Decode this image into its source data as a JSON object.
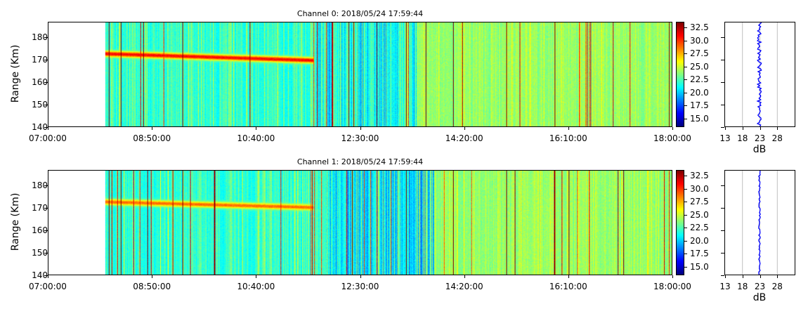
{
  "chart_data": [
    {
      "type": "heatmap",
      "title": "Channel 0: 2018/05/24 17:59:44",
      "ylabel": "Range (Km)",
      "xlim": [
        "07:00:00",
        "18:00:00"
      ],
      "ylim": [
        140,
        187
      ],
      "x_ticks": [
        "07:00:00",
        "08:50:00",
        "10:40:00",
        "12:30:00",
        "14:20:00",
        "16:10:00",
        "18:00:00"
      ],
      "y_ticks": [
        140,
        150,
        160,
        170,
        180
      ],
      "data_start": "08:00:00",
      "colorbar": {
        "colormap": "jet",
        "range": [
          13.5,
          33.5
        ],
        "ticks": [
          15.0,
          17.5,
          20.0,
          22.5,
          25.0,
          27.5,
          30.0,
          32.5
        ]
      },
      "echo_layer": {
        "range_start_km": 173,
        "range_end_km": 170,
        "time_start": "08:00:00",
        "time_end": "11:40:00",
        "level_db": 31
      },
      "profile": {
        "xlabel": "dB",
        "x_ticks": [
          13,
          18,
          23,
          28
        ],
        "xlim": [
          13,
          33
        ],
        "mean_db": 23,
        "grid": true
      }
    },
    {
      "type": "heatmap",
      "title": "Channel 1: 2018/05/24 17:59:44",
      "ylabel": "Range (Km)",
      "xlim": [
        "07:00:00",
        "18:00:00"
      ],
      "ylim": [
        140,
        187
      ],
      "x_ticks": [
        "07:00:00",
        "08:50:00",
        "10:40:00",
        "12:30:00",
        "14:20:00",
        "16:10:00",
        "18:00:00"
      ],
      "y_ticks": [
        140,
        150,
        160,
        170,
        180
      ],
      "data_start": "08:00:00",
      "colorbar": {
        "colormap": "jet",
        "range": [
          13.5,
          33.5
        ],
        "ticks": [
          15.0,
          17.5,
          20.0,
          22.5,
          25.0,
          27.5,
          30.0,
          32.5
        ]
      },
      "echo_layer": {
        "range_start_km": 173,
        "range_end_km": 170.5,
        "time_start": "08:00:00",
        "time_end": "11:40:00",
        "level_db": 29
      },
      "profile": {
        "xlabel": "dB",
        "x_ticks": [
          13,
          18,
          23,
          28
        ],
        "xlim": [
          13,
          33
        ],
        "mean_db": 23,
        "grid": true
      }
    }
  ]
}
